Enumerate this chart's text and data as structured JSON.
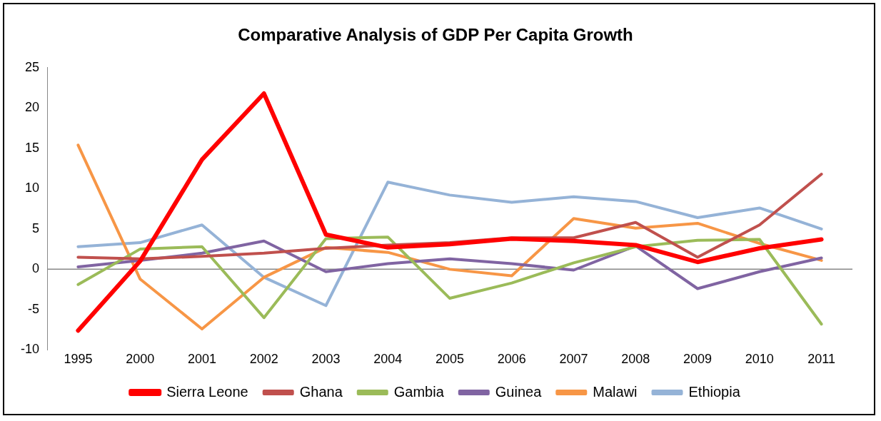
{
  "chart_data": {
    "type": "line",
    "title": "Comparative Analysis of GDP Per Capita Growth",
    "categories": [
      "1995",
      "2000",
      "2001",
      "2002",
      "2003",
      "2004",
      "2005",
      "2006",
      "2007",
      "2008",
      "2009",
      "2010",
      "2011"
    ],
    "series": [
      {
        "name": "Sierra Leone",
        "color": "#ff0000",
        "values": [
          -7.6,
          1.0,
          13.6,
          21.8,
          4.3,
          2.7,
          3.1,
          3.8,
          3.5,
          3.0,
          0.9,
          2.6,
          3.7
        ]
      },
      {
        "name": "Ghana",
        "color": "#c0504d",
        "values": [
          1.5,
          1.3,
          1.6,
          2.0,
          2.6,
          3.0,
          3.3,
          3.9,
          3.9,
          5.8,
          1.5,
          5.5,
          11.8
        ]
      },
      {
        "name": "Gambia",
        "color": "#9bbb59",
        "values": [
          -1.9,
          2.5,
          2.8,
          -6.0,
          3.8,
          4.0,
          -3.6,
          -1.7,
          0.8,
          2.8,
          3.6,
          3.7,
          -6.8
        ]
      },
      {
        "name": "Guinea",
        "color": "#8064a2",
        "values": [
          0.3,
          1.1,
          2.0,
          3.5,
          -0.3,
          0.7,
          1.3,
          0.7,
          -0.1,
          2.9,
          -2.4,
          -0.3,
          1.4
        ]
      },
      {
        "name": "Malawi",
        "color": "#f79646",
        "values": [
          15.4,
          -1.2,
          -7.4,
          -1.0,
          2.7,
          2.1,
          0.0,
          -0.8,
          6.3,
          5.1,
          5.7,
          3.2,
          1.1
        ]
      },
      {
        "name": "Ethiopia",
        "color": "#95b3d7",
        "values": [
          2.8,
          3.3,
          5.5,
          -1.0,
          -4.5,
          10.8,
          9.2,
          8.3,
          9.0,
          8.4,
          6.4,
          7.6,
          5.0
        ]
      }
    ],
    "ylim": [
      -10,
      25
    ],
    "yticks": [
      -10,
      -5,
      0,
      5,
      10,
      15,
      20,
      25
    ],
    "ref_lines": [
      {
        "axis": "y",
        "value": 0,
        "color": "#888888"
      }
    ],
    "grid": false,
    "legend": "bottom",
    "marker": "none"
  }
}
